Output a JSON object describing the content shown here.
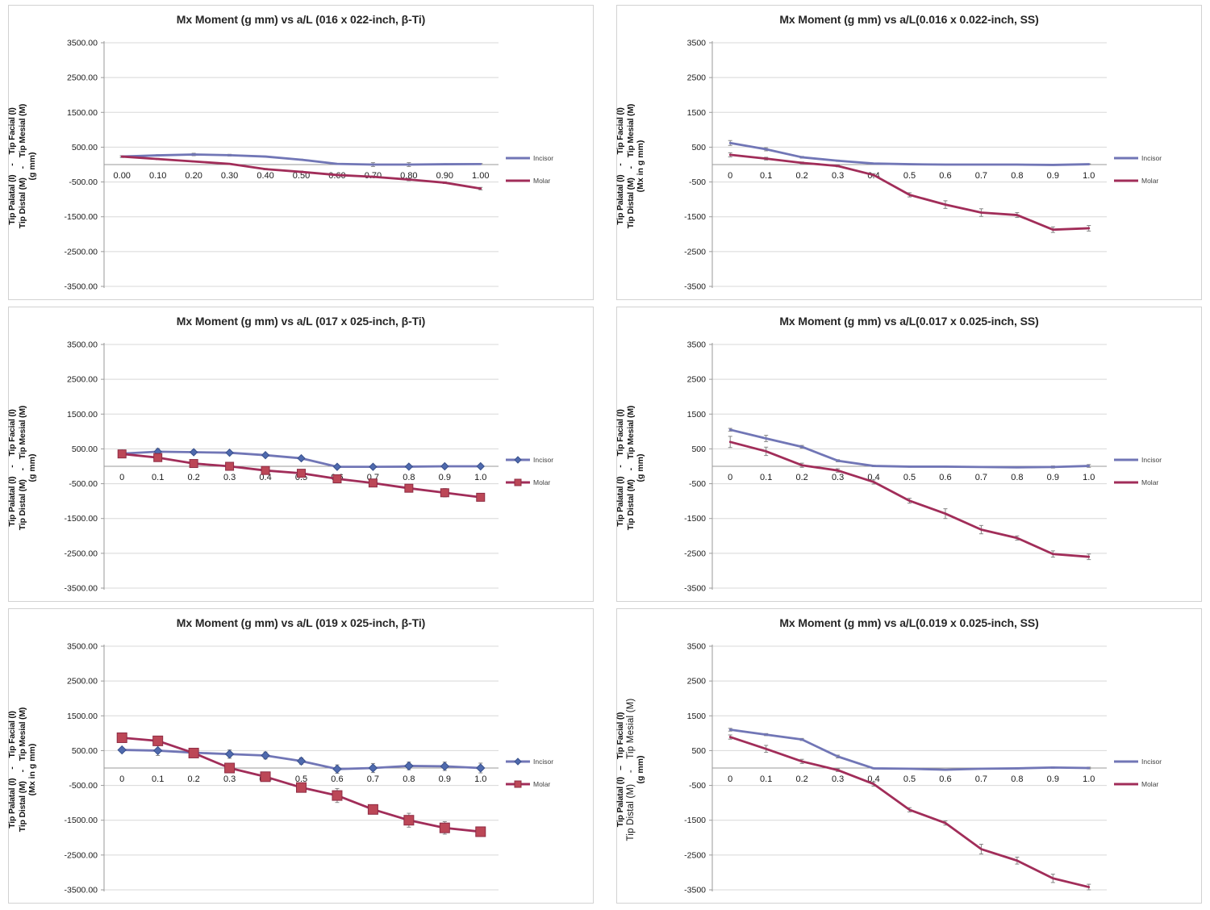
{
  "colors": {
    "incisor": "#7176B6",
    "molar": "#A12D59",
    "incisor_marker_fill": "#4F6AAE",
    "incisor_marker_stroke": "#39508C",
    "molar_marker_fill": "#BC4757",
    "molar_marker_stroke": "#8E2C44",
    "error_bar": "#848484",
    "gridline": "#D8D8D8",
    "axis": "#9A9A9A",
    "tick_text": "#1a1a1a",
    "legend_text": "#3f3f3f",
    "panel_border": "#d2d2d2"
  },
  "chart_data": [
    {
      "type": "line",
      "title": "Mx Moment (g mm) vs a/L (016 x 022-inch, β-Ti)",
      "ylabel_line1": "Tip Palatal (I)    -    Tip Facial (I)",
      "ylabel_line2": "Tip Distal (M)    -    Tip Mesial (M)",
      "ylabel_line3": "(g mm)",
      "ylabel_line2_regular": false,
      "ylim": [
        -3500,
        3500
      ],
      "y_ticks": [
        3500,
        2500,
        1500,
        500,
        -500,
        -1500,
        -2500,
        -3500
      ],
      "y_tick_labels": [
        "3500.00",
        "2500.00",
        "1500.00",
        "500.00",
        "-500.00",
        "-1500.00",
        "-2500.00",
        "-3500.00"
      ],
      "x": [
        0,
        0.1,
        0.2,
        0.3,
        0.4,
        0.5,
        0.6,
        0.7,
        0.8,
        0.9,
        1.0
      ],
      "x_tick_labels": [
        "0.00",
        "0.10",
        "0.20",
        "0.30",
        "0.40",
        "0.50",
        "0.60",
        "0.70",
        "0.80",
        "0.90",
        "1.00"
      ],
      "legend_position": "right",
      "series": [
        {
          "name": "Incisor",
          "color": "incisor",
          "marker": "none",
          "marker_size": 0,
          "values": [
            230,
            265,
            290,
            270,
            230,
            140,
            20,
            0,
            0,
            10,
            15
          ],
          "err": [
            25,
            20,
            35,
            25,
            15,
            15,
            15,
            55,
            55,
            15,
            15
          ]
        },
        {
          "name": "Molar",
          "color": "molar",
          "marker": "none",
          "marker_size": 0,
          "values": [
            230,
            160,
            90,
            20,
            -130,
            -210,
            -300,
            -350,
            -430,
            -520,
            -690
          ],
          "err": [
            25,
            20,
            15,
            15,
            20,
            25,
            25,
            25,
            35,
            25,
            35
          ]
        }
      ]
    },
    {
      "type": "line",
      "title": "Mx Moment (g mm) vs a/L(0.016 x 0.022-inch, SS)",
      "ylabel_line1": "Tip Palatal (I)    -    Tip Facial (I)",
      "ylabel_line2": "Tip Distal (M)    -    Tip Mesial (M)",
      "ylabel_line3": "(Mx in g mm)",
      "ylabel_line2_regular": false,
      "ylim": [
        -3500,
        3500
      ],
      "y_ticks": [
        3500,
        2500,
        1500,
        500,
        -500,
        -1500,
        -2500,
        -3500
      ],
      "y_tick_labels": [
        "3500",
        "2500",
        "1500",
        "500",
        "-500",
        "-1500",
        "-2500",
        "-3500"
      ],
      "x": [
        0,
        0.1,
        0.2,
        0.3,
        0.4,
        0.5,
        0.6,
        0.7,
        0.8,
        0.9,
        1.0
      ],
      "x_tick_labels": [
        "0",
        "0.1",
        "0.2",
        "0.3",
        "0.4",
        "0.5",
        "0.6",
        "0.7",
        "0.8",
        "0.9",
        "1.0"
      ],
      "legend_position": "right",
      "series": [
        {
          "name": "Incisor",
          "color": "incisor",
          "marker": "none",
          "marker_size": 0,
          "values": [
            620,
            440,
            210,
            110,
            30,
            10,
            0,
            0,
            0,
            -10,
            10
          ],
          "err": [
            70,
            45,
            25,
            20,
            15,
            10,
            10,
            10,
            10,
            10,
            10
          ]
        },
        {
          "name": "Molar",
          "color": "molar",
          "marker": "none",
          "marker_size": 0,
          "values": [
            280,
            170,
            50,
            -40,
            -300,
            -870,
            -1150,
            -1380,
            -1450,
            -1870,
            -1830
          ],
          "err": [
            60,
            40,
            25,
            25,
            40,
            60,
            110,
            110,
            70,
            80,
            80
          ]
        }
      ]
    },
    {
      "type": "line",
      "title": "Mx Moment (g mm) vs a/L (017 x 025-inch, β-Ti)",
      "ylabel_line1": "Tip Palatal (I)    -    Tip Facial (I)",
      "ylabel_line2": "Tip Distal (M)    -    Tip Mesial (M)",
      "ylabel_line3": "(g mm)",
      "ylabel_line2_regular": false,
      "ylim": [
        -3500,
        3500
      ],
      "y_ticks": [
        3500,
        2500,
        1500,
        500,
        -500,
        -1500,
        -2500,
        -3500
      ],
      "y_tick_labels": [
        "3500.00",
        "2500.00",
        "1500.00",
        "500.00",
        "-500.00",
        "-1500.00",
        "-2500.00",
        "-3500.00"
      ],
      "x": [
        0,
        0.1,
        0.2,
        0.3,
        0.4,
        0.5,
        0.6,
        0.7,
        0.8,
        0.9,
        1.0
      ],
      "x_tick_labels": [
        "0",
        "0.1",
        "0.2",
        "0.3",
        "0.4",
        "0.5",
        "0.6",
        "0.7",
        "0.8",
        "0.9",
        "1.0"
      ],
      "legend_position": "right",
      "series": [
        {
          "name": "Incisor",
          "color": "incisor",
          "marker": "diamond",
          "marker_size": 9,
          "values": [
            365,
            420,
            405,
            390,
            320,
            230,
            -15,
            -15,
            -10,
            0,
            0
          ],
          "err": [
            60,
            90,
            60,
            50,
            45,
            55,
            35,
            35,
            35,
            60,
            45
          ]
        },
        {
          "name": "Molar",
          "color": "molar",
          "marker": "square",
          "marker_size": 10,
          "values": [
            355,
            250,
            80,
            0,
            -120,
            -200,
            -360,
            -480,
            -630,
            -760,
            -890
          ],
          "err": [
            45,
            55,
            45,
            40,
            45,
            55,
            45,
            55,
            55,
            120,
            55
          ]
        }
      ]
    },
    {
      "type": "line",
      "title": "Mx Moment (g mm) vs a/L(0.017 x 0.025-inch, SS)",
      "ylabel_line1": "Tip Palatal (I)    -    Tip Facial (I)",
      "ylabel_line2": "Tip Distal (M)    -    Tip Mesial (M)",
      "ylabel_line3": "(g mm)",
      "ylabel_line2_regular": false,
      "ylim": [
        -3500,
        3500
      ],
      "y_ticks": [
        3500,
        2500,
        1500,
        500,
        -500,
        -1500,
        -2500,
        -3500
      ],
      "y_tick_labels": [
        "3500",
        "2500",
        "1500",
        "500",
        "-500",
        "-1500",
        "-2500",
        "-3500"
      ],
      "x": [
        0,
        0.1,
        0.2,
        0.3,
        0.4,
        0.5,
        0.6,
        0.7,
        0.8,
        0.9,
        1.0
      ],
      "x_tick_labels": [
        "0",
        "0.1",
        "0.2",
        "0.3",
        "0.4",
        "0.5",
        "0.6",
        "0.7",
        "0.8",
        "0.9",
        "1.0"
      ],
      "legend_position": "right",
      "series": [
        {
          "name": "Incisor",
          "color": "incisor",
          "marker": "none",
          "marker_size": 0,
          "values": [
            1050,
            800,
            560,
            160,
            10,
            -10,
            -10,
            -20,
            -30,
            -20,
            10
          ],
          "err": [
            40,
            90,
            40,
            30,
            20,
            15,
            15,
            15,
            15,
            30,
            40
          ]
        },
        {
          "name": "Molar",
          "color": "molar",
          "marker": "none",
          "marker_size": 0,
          "values": [
            700,
            430,
            30,
            -120,
            -450,
            -990,
            -1360,
            -1820,
            -2060,
            -2520,
            -2600
          ],
          "err": [
            160,
            120,
            60,
            50,
            60,
            70,
            140,
            120,
            60,
            90,
            80
          ]
        }
      ]
    },
    {
      "type": "line",
      "title": "Mx Moment (g mm) vs a/L (019 x 025-inch, β-Ti)",
      "ylabel_line1": "Tip Palatal (I)    -    Tip Facial (I)",
      "ylabel_line2": "Tip Distal (M)    -    Tip Mesial (M)",
      "ylabel_line3": "(Mx in g mm)",
      "ylabel_line2_regular": false,
      "ylim": [
        -3500,
        3500
      ],
      "y_ticks": [
        3500,
        2500,
        1500,
        500,
        -500,
        -1500,
        -2500,
        -3500
      ],
      "y_tick_labels": [
        "3500.00",
        "2500.00",
        "1500.00",
        "500.00",
        "-500.00",
        "-1500.00",
        "-2500.00",
        "-3500.00"
      ],
      "x": [
        0,
        0.1,
        0.2,
        0.3,
        0.4,
        0.5,
        0.6,
        0.7,
        0.8,
        0.9,
        1.0
      ],
      "x_tick_labels": [
        "0",
        "0.1",
        "0.2",
        "0.3",
        "0.4",
        "0.5",
        "0.6",
        "0.7",
        "0.8",
        "0.9",
        "1.0"
      ],
      "legend_position": "right",
      "series": [
        {
          "name": "Incisor",
          "color": "incisor",
          "marker": "diamond",
          "marker_size": 10,
          "values": [
            520,
            500,
            440,
            400,
            360,
            200,
            -30,
            0,
            60,
            50,
            0
          ],
          "err": [
            60,
            140,
            100,
            120,
            100,
            90,
            120,
            130,
            110,
            120,
            140
          ]
        },
        {
          "name": "Molar",
          "color": "molar",
          "marker": "square",
          "marker_size": 12,
          "values": [
            870,
            780,
            430,
            0,
            -250,
            -560,
            -790,
            -1190,
            -1500,
            -1720,
            -1830
          ],
          "err": [
            80,
            90,
            90,
            80,
            90,
            100,
            200,
            100,
            200,
            180,
            100
          ]
        }
      ]
    },
    {
      "type": "line",
      "title": "Mx Moment (g mm) vs a/L(0.019 x 0.025-inch, SS)",
      "ylabel_line1": "Tip Palatal (I)   –   Tip Facial (I)",
      "ylabel_line2": "Tip Distal (M)    -    Tip Mesial (M)",
      "ylabel_line3": "(g mm)",
      "ylabel_line2_regular": true,
      "ylim": [
        -3500,
        3500
      ],
      "y_ticks": [
        3500,
        2500,
        1500,
        500,
        -500,
        -1500,
        -2500,
        -3500
      ],
      "y_tick_labels": [
        "3500",
        "2500",
        "1500",
        "500",
        "-500",
        "-1500",
        "-2500",
        "-3500"
      ],
      "x": [
        0,
        0.1,
        0.2,
        0.3,
        0.4,
        0.5,
        0.6,
        0.7,
        0.8,
        0.9,
        1.0
      ],
      "x_tick_labels": [
        "0",
        "0.1",
        "0.2",
        "0.3",
        "0.4",
        "0.5",
        "0.6",
        "0.7",
        "0.8",
        "0.9",
        "1.0"
      ],
      "legend_position": "right",
      "series": [
        {
          "name": "Incisor",
          "color": "incisor",
          "marker": "none",
          "marker_size": 0,
          "values": [
            1100,
            960,
            820,
            330,
            -10,
            -20,
            -50,
            -20,
            -10,
            15,
            0
          ],
          "err": [
            40,
            30,
            30,
            40,
            15,
            15,
            15,
            15,
            15,
            20,
            25
          ]
        },
        {
          "name": "Molar",
          "color": "molar",
          "marker": "none",
          "marker_size": 0,
          "values": [
            890,
            550,
            190,
            -60,
            -460,
            -1200,
            -1580,
            -2330,
            -2660,
            -3170,
            -3420
          ],
          "err": [
            60,
            100,
            60,
            40,
            60,
            60,
            60,
            140,
            100,
            120,
            80
          ]
        }
      ]
    }
  ]
}
